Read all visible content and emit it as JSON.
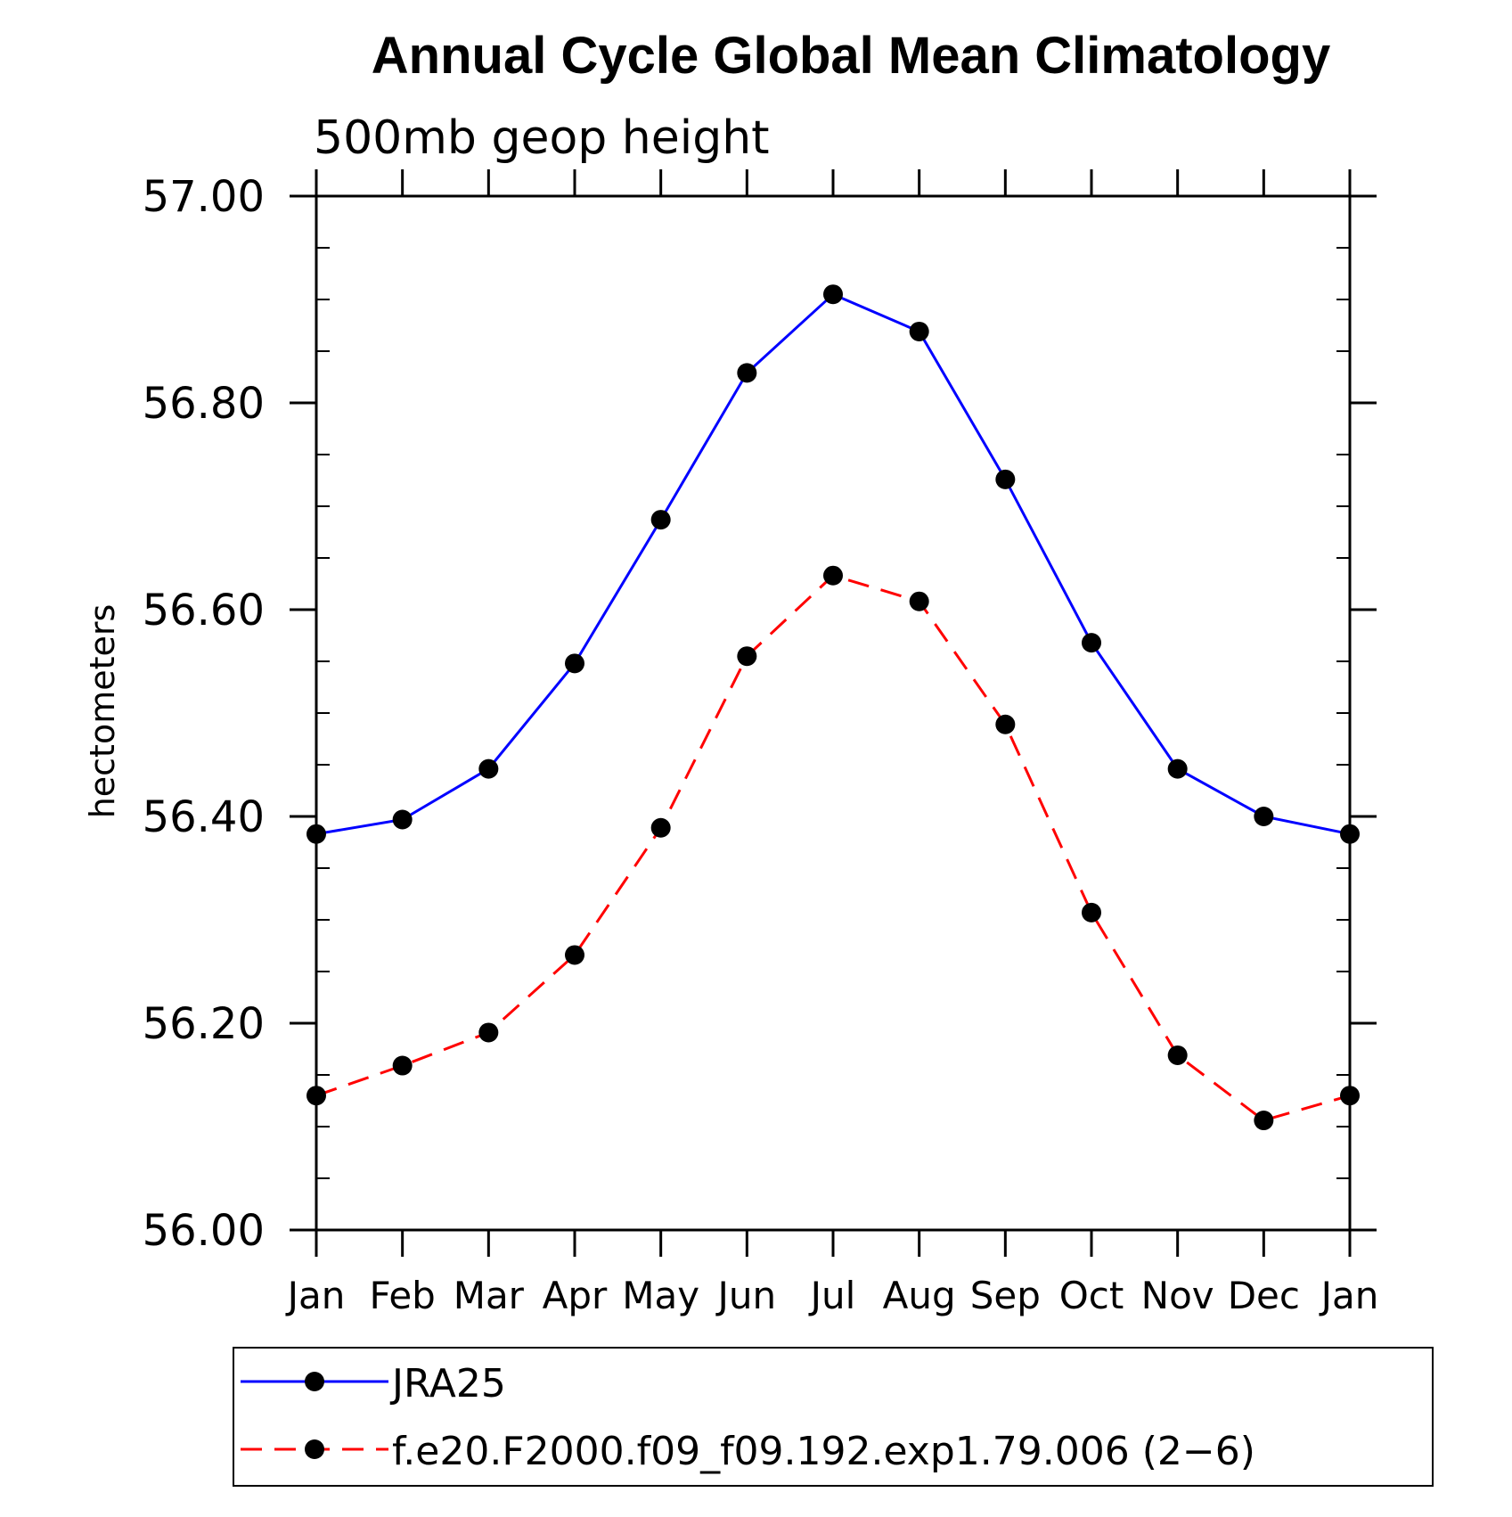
{
  "chart_data": {
    "type": "line",
    "title": "Annual Cycle Global Mean Climatology",
    "subtitle": "500mb geop height",
    "xlabel": "",
    "ylabel": "hectometers",
    "categories": [
      "Jan",
      "Feb",
      "Mar",
      "Apr",
      "May",
      "Jun",
      "Jul",
      "Aug",
      "Sep",
      "Oct",
      "Nov",
      "Dec",
      "Jan"
    ],
    "ylim": [
      56.0,
      57.0
    ],
    "y_ticks": [
      "56.00",
      "56.20",
      "56.40",
      "56.60",
      "56.80",
      "57.00"
    ],
    "grid": false,
    "legend_position": "bottom",
    "series": [
      {
        "name": "JRA25",
        "color": "#0000ff",
        "dash": "solid",
        "marker": "filled-circle",
        "values": [
          56.383,
          56.397,
          56.446,
          56.548,
          56.687,
          56.829,
          56.905,
          56.869,
          56.726,
          56.568,
          56.446,
          56.4,
          56.383
        ]
      },
      {
        "name": "f.e20.F2000.f09_f09.192.exp1.79.006 (2−6)",
        "color": "#ff0000",
        "dash": "dashed",
        "marker": "filled-circle",
        "values": [
          56.13,
          56.159,
          56.191,
          56.266,
          56.389,
          56.555,
          56.633,
          56.608,
          56.489,
          56.307,
          56.169,
          56.106,
          56.13
        ]
      }
    ]
  }
}
